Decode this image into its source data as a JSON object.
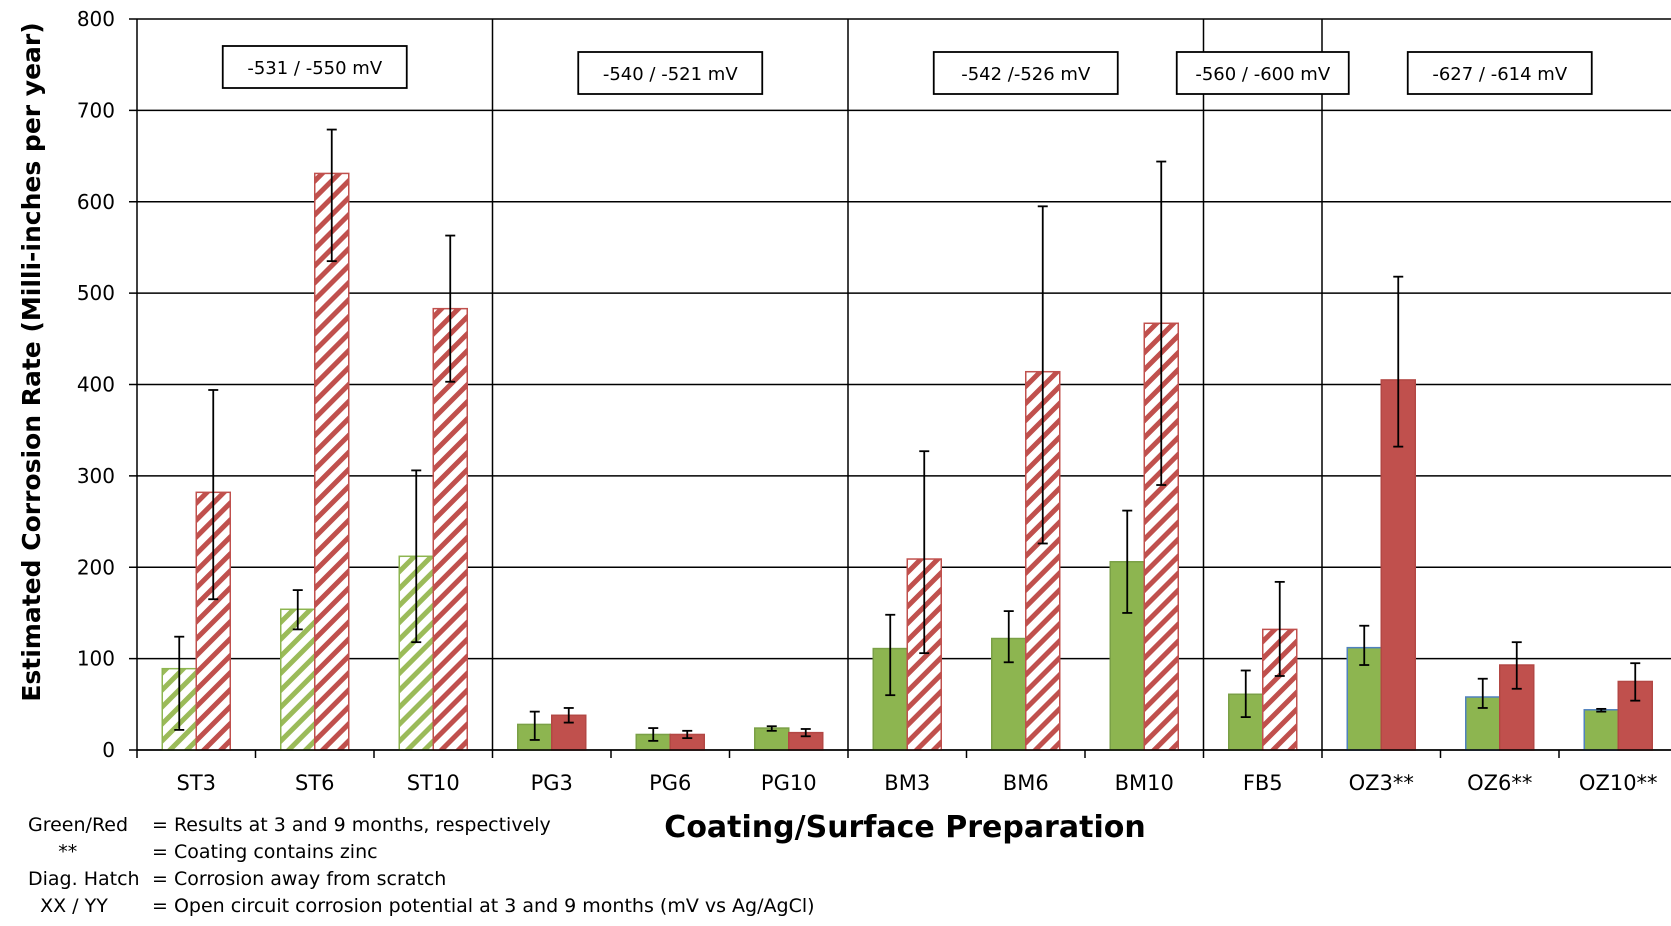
{
  "chart_data": {
    "type": "bar",
    "ylabel": "Estimated Corrosion Rate (Milli-inches per year)",
    "xlabel": "Coating/Surface Preparation",
    "ylim": [
      0,
      800
    ],
    "yticks": [
      0,
      100,
      200,
      300,
      400,
      500,
      600,
      700,
      800
    ],
    "grid": true,
    "categories": [
      "ST3",
      "ST6",
      "ST10",
      "PG3",
      "PG6",
      "PG10",
      "BM3",
      "BM6",
      "BM10",
      "FB5",
      "OZ3**",
      "OZ6**",
      "OZ10**"
    ],
    "series": [
      {
        "color": "#8db550",
        "values": [
          89,
          154,
          212,
          28,
          17,
          24,
          111,
          122,
          206,
          61,
          112,
          58,
          44
        ],
        "error_low": [
          22,
          132,
          118,
          11,
          10,
          21,
          60,
          96,
          150,
          36,
          93,
          46,
          42
        ],
        "error_high": [
          124,
          175,
          306,
          42,
          24,
          26,
          148,
          152,
          262,
          87,
          136,
          78,
          45
        ],
        "hatched": [
          true,
          true,
          true,
          false,
          false,
          false,
          false,
          false,
          false,
          false,
          false,
          false,
          false
        ]
      },
      {
        "color": "#c0504d",
        "values": [
          282,
          631,
          483,
          38,
          17,
          19,
          209,
          414,
          467,
          132,
          405,
          93,
          75
        ],
        "error_low": [
          165,
          535,
          403,
          30,
          13,
          15,
          106,
          226,
          290,
          81,
          332,
          67,
          54
        ],
        "error_high": [
          394,
          679,
          563,
          46,
          21,
          23,
          327,
          595,
          644,
          184,
          518,
          118,
          95
        ],
        "hatched": [
          true,
          true,
          true,
          false,
          false,
          false,
          true,
          true,
          true,
          true,
          false,
          false,
          false
        ]
      }
    ],
    "groups": [
      {
        "label": "-531 / -550 mV",
        "start": 0,
        "end": 2
      },
      {
        "label": "-540 / -521  mV",
        "start": 3,
        "end": 5
      },
      {
        "label": "-542 /-526 mV",
        "start": 6,
        "end": 8
      },
      {
        "label": "-560 / -600 mV",
        "start": 9,
        "end": 9
      },
      {
        "label": "-627 / -614 mV",
        "start": 10,
        "end": 12
      }
    ]
  },
  "notes": [
    {
      "key": "Green/Red",
      "text": "= Results at 3 and 9 months, respectively"
    },
    {
      "key": "     **",
      "text": "= Coating contains zinc"
    },
    {
      "key": "Diag. Hatch",
      "text": "= Corrosion away from scratch"
    },
    {
      "key": "  XX / YY",
      "text": "= Open circuit corrosion potential at 3 and 9 months (mV vs Ag/AgCl)"
    }
  ]
}
